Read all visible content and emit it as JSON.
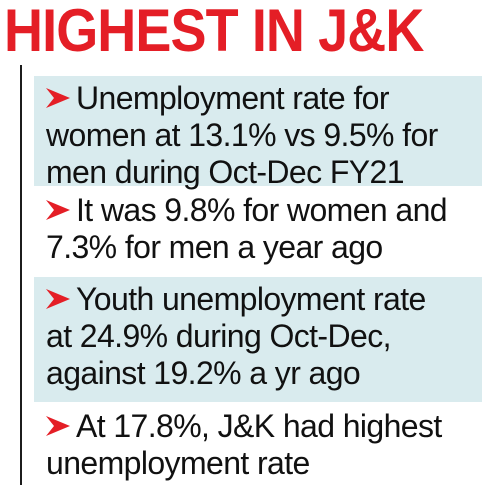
{
  "headline": "HIGHEST IN J&K",
  "colors": {
    "accent": "#e41e26",
    "panel": "#d9ebee",
    "text": "#111111"
  },
  "items": [
    {
      "icon": "arrow-bullet-icon",
      "lines": [
        "Unemployment rate for",
        "women at 13.1% vs 9.5% for",
        "men during Oct-Dec FY21"
      ]
    },
    {
      "icon": "arrow-bullet-icon",
      "lines": [
        "It was 9.8% for women and",
        "7.3% for men a year ago"
      ]
    },
    {
      "icon": "arrow-bullet-icon",
      "lines": [
        "Youth unemployment rate",
        "at 24.9% during Oct-Dec,",
        "against 19.2% a yr ago"
      ]
    },
    {
      "icon": "arrow-bullet-icon",
      "lines": [
        "At 17.8%, J&K had highest",
        "unemployment rate"
      ]
    }
  ]
}
